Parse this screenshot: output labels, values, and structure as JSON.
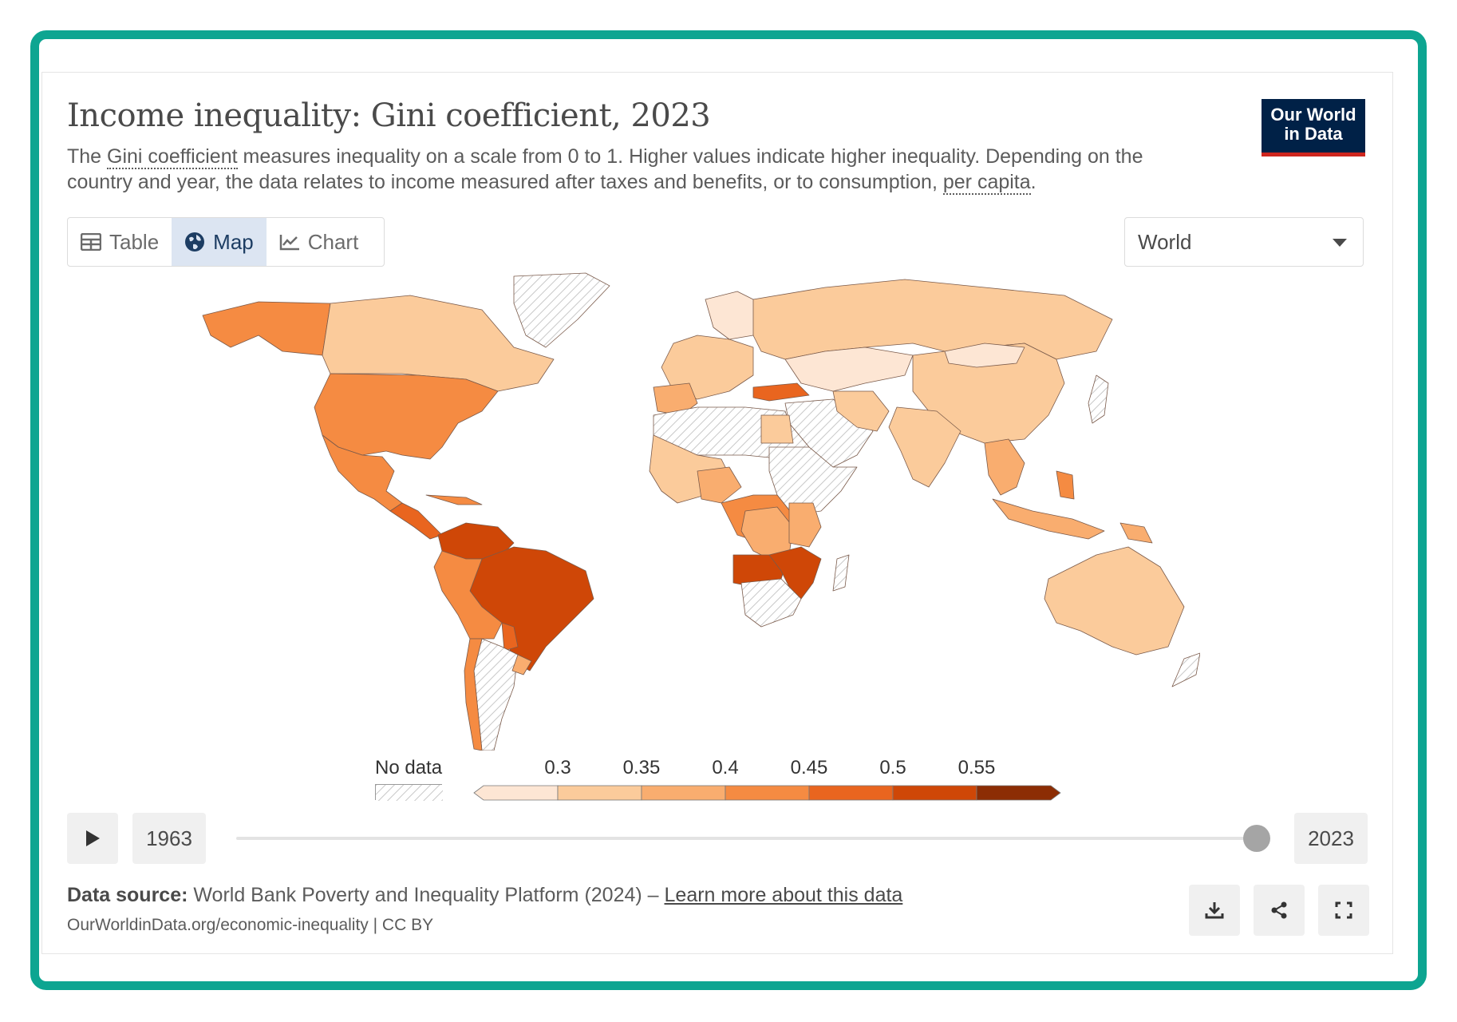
{
  "header": {
    "title": "Income inequality: Gini coefficient, 2023",
    "subtitle_pre": "The ",
    "subtitle_link1": "Gini coefficient",
    "subtitle_mid": " measures inequality on a scale from 0 to 1. Higher values indicate higher inequality. Depending on the country and year, the data relates to income measured after taxes and benefits, or to consumption, ",
    "subtitle_link2": "per capita",
    "subtitle_post": "."
  },
  "logo": {
    "line1": "Our World",
    "line2": "in Data"
  },
  "tabs": [
    {
      "label": "Table",
      "icon": "table-icon",
      "active": false
    },
    {
      "label": "Map",
      "icon": "globe-icon",
      "active": true
    },
    {
      "label": "Chart",
      "icon": "line-chart-icon",
      "active": false
    }
  ],
  "region_select": {
    "value": "World"
  },
  "legend": {
    "nodata_label": "No data",
    "ticks": [
      "0.3",
      "0.35",
      "0.4",
      "0.45",
      "0.5",
      "0.55"
    ],
    "colors": [
      "#fde6d4",
      "#fbcb9b",
      "#f9ad6f",
      "#f58b42",
      "#e9651f",
      "#cf4707",
      "#8c2d04"
    ]
  },
  "timeline": {
    "start_year": "1963",
    "end_year": "2023",
    "position": 1.0
  },
  "footer": {
    "source_label": "Data source:",
    "source_text": " World Bank Poverty and Inequality Platform (2024) – ",
    "learn_more": "Learn more about this data",
    "url": "OurWorldinData.org/economic-inequality | CC BY"
  },
  "actions": [
    {
      "name": "download-button",
      "icon": "download-icon"
    },
    {
      "name": "share-button",
      "icon": "share-icon"
    },
    {
      "name": "fullscreen-button",
      "icon": "fullscreen-icon"
    }
  ]
}
